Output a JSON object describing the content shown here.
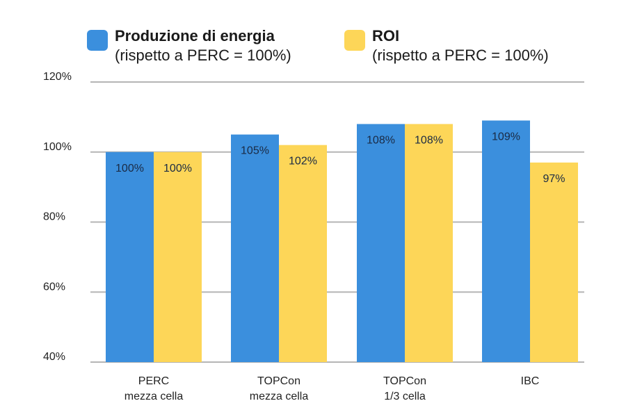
{
  "chart_data": {
    "type": "bar",
    "categories": [
      "PERC\nmezza cella",
      "TOPCon\nmezza cella",
      "TOPCon\n1/3 cella",
      "IBC"
    ],
    "series": [
      {
        "name": "Produzione di energia",
        "subtitle": "(rispetto a PERC = 100%)",
        "color": "#3b8fdd",
        "values": [
          100,
          105,
          108,
          109
        ],
        "labels": [
          "100%",
          "105%",
          "108%",
          "109%"
        ]
      },
      {
        "name": "ROI",
        "subtitle": "(rispetto a PERC = 100%)",
        "color": "#fdd658",
        "values": [
          100,
          102,
          108,
          97
        ],
        "labels": [
          "100%",
          "102%",
          "108%",
          "97%"
        ]
      }
    ],
    "ylim": [
      40,
      120
    ],
    "yticks": [
      40,
      60,
      80,
      100,
      120
    ],
    "ytick_labels": [
      "40%",
      "60%",
      "80%",
      "100%",
      "120%"
    ],
    "grid": true,
    "legend": "top",
    "xlabel": "",
    "ylabel": "",
    "title": ""
  }
}
